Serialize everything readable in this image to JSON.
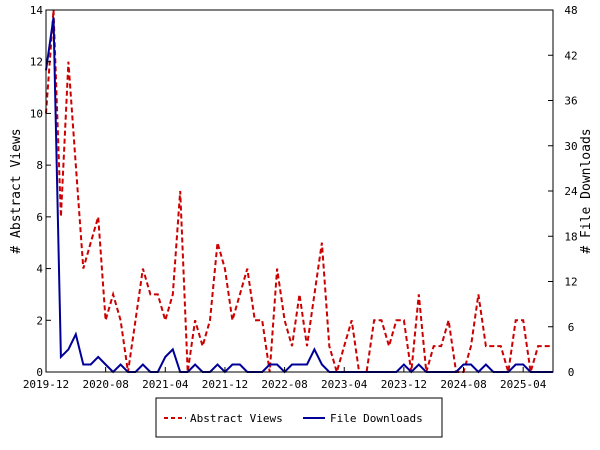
{
  "chart_data": {
    "type": "line",
    "ylabel_left": "# Abstract Views",
    "ylabel_right": "# File Downloads",
    "ylim_left": [
      0,
      14
    ],
    "ylim_right": [
      0,
      48
    ],
    "yticks_left": [
      "0",
      "2",
      "4",
      "6",
      "8",
      "10",
      "12",
      "14"
    ],
    "yticks_right": [
      "0",
      "6",
      "12",
      "18",
      "24",
      "30",
      "36",
      "42",
      "48"
    ],
    "xticks": [
      "2019-12",
      "2020-08",
      "2021-04",
      "2021-12",
      "2022-08",
      "2023-04",
      "2023-12",
      "2024-08",
      "2025-04"
    ],
    "x_range": [
      "2019-12",
      "2025-08"
    ],
    "grid": false,
    "legend_position": "bottom",
    "series": [
      {
        "name": "Abstract Views",
        "axis": "left",
        "color": "#cc0000",
        "style": "dashed",
        "x": [
          "2019-12",
          "2020-01",
          "2020-02",
          "2020-03",
          "2020-04",
          "2020-05",
          "2020-06",
          "2020-07",
          "2020-08",
          "2020-09",
          "2020-10",
          "2020-11",
          "2020-12",
          "2021-01",
          "2021-02",
          "2021-03",
          "2021-04",
          "2021-05",
          "2021-06",
          "2021-07",
          "2021-08",
          "2021-09",
          "2021-10",
          "2021-11",
          "2021-12",
          "2022-01",
          "2022-02",
          "2022-03",
          "2022-04",
          "2022-05",
          "2022-06",
          "2022-07",
          "2022-08",
          "2022-09",
          "2022-10",
          "2022-11",
          "2022-12",
          "2023-01",
          "2023-02",
          "2023-03",
          "2023-04",
          "2023-05",
          "2023-06",
          "2023-07",
          "2023-08",
          "2023-09",
          "2023-10",
          "2023-11",
          "2023-12",
          "2024-01",
          "2024-02",
          "2024-03",
          "2024-04",
          "2024-05",
          "2024-06",
          "2024-07",
          "2024-08",
          "2024-09",
          "2024-10",
          "2024-11",
          "2024-12",
          "2025-01",
          "2025-02",
          "2025-03",
          "2025-04",
          "2025-05",
          "2025-06",
          "2025-07",
          "2025-08"
        ],
        "values": [
          10,
          14,
          6,
          12,
          8,
          4,
          5,
          6,
          2,
          3,
          2,
          0,
          2,
          4,
          3,
          3,
          2,
          3,
          7,
          0,
          2,
          1,
          2,
          5,
          4,
          2,
          3,
          4,
          2,
          2,
          0,
          4,
          2,
          1,
          3,
          1,
          3,
          5,
          1,
          0,
          1,
          2,
          0,
          0,
          2,
          2,
          1,
          2,
          2,
          0,
          3,
          0,
          1,
          1,
          2,
          0,
          0,
          1,
          3,
          1,
          1,
          1,
          0,
          2,
          2,
          0,
          1,
          1,
          1
        ]
      },
      {
        "name": "File Downloads",
        "axis": "right",
        "color": "#000099",
        "style": "solid",
        "x": [
          "2019-12",
          "2020-01",
          "2020-02",
          "2020-03",
          "2020-04",
          "2020-05",
          "2020-06",
          "2020-07",
          "2020-08",
          "2020-09",
          "2020-10",
          "2020-11",
          "2020-12",
          "2021-01",
          "2021-02",
          "2021-03",
          "2021-04",
          "2021-05",
          "2021-06",
          "2021-07",
          "2021-08",
          "2021-09",
          "2021-10",
          "2021-11",
          "2021-12",
          "2022-01",
          "2022-02",
          "2022-03",
          "2022-04",
          "2022-05",
          "2022-06",
          "2022-07",
          "2022-08",
          "2022-09",
          "2022-10",
          "2022-11",
          "2022-12",
          "2023-01",
          "2023-02",
          "2023-03",
          "2023-04",
          "2023-05",
          "2023-06",
          "2023-07",
          "2023-08",
          "2023-09",
          "2023-10",
          "2023-11",
          "2023-12",
          "2024-01",
          "2024-02",
          "2024-03",
          "2024-04",
          "2024-05",
          "2024-06",
          "2024-07",
          "2024-08",
          "2024-09",
          "2024-10",
          "2024-11",
          "2024-12",
          "2025-01",
          "2025-02",
          "2025-03",
          "2025-04",
          "2025-05",
          "2025-06",
          "2025-07",
          "2025-08"
        ],
        "values": [
          40,
          47,
          2,
          3,
          5,
          1,
          1,
          2,
          1,
          0,
          1,
          0,
          0,
          1,
          0,
          0,
          2,
          3,
          0,
          0,
          1,
          0,
          0,
          1,
          0,
          1,
          1,
          0,
          0,
          0,
          1,
          1,
          0,
          1,
          1,
          1,
          3,
          1,
          0,
          0,
          0,
          0,
          0,
          0,
          0,
          0,
          0,
          0,
          1,
          0,
          1,
          0,
          0,
          0,
          0,
          0,
          1,
          1,
          0,
          1,
          0,
          0,
          0,
          1,
          1,
          0,
          0,
          0,
          0
        ]
      }
    ]
  }
}
